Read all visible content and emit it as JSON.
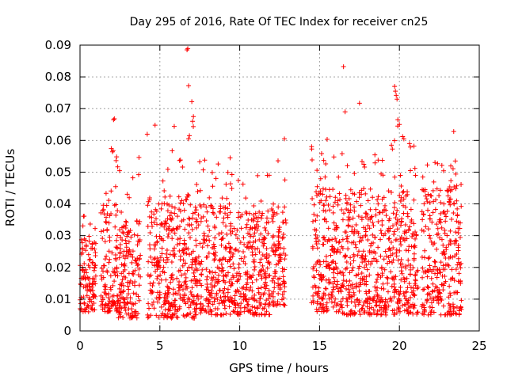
{
  "chart_data": {
    "type": "scatter",
    "title": "Day 295 of 2016, Rate Of TEC Index for receiver cn25",
    "xlabel": "GPS time / hours",
    "ylabel": "ROTI / TECUs",
    "xlim": [
      0,
      25
    ],
    "ylim": [
      0,
      0.09
    ],
    "xticks": [
      0,
      5,
      10,
      15,
      20,
      25
    ],
    "xtick_labels": [
      "0",
      "5",
      "10",
      "15",
      "20",
      "25"
    ],
    "yticks": [
      0,
      0.01,
      0.02,
      0.03,
      0.04,
      0.05,
      0.06,
      0.07,
      0.08,
      0.09
    ],
    "ytick_labels": [
      "0",
      "0.01",
      "0.02",
      "0.03",
      "0.04",
      "0.05",
      "0.06",
      "0.07",
      "0.08",
      "0.09"
    ],
    "grid": true,
    "marker": "+",
    "color": "#ff0000",
    "series": [
      {
        "name": "ROTI",
        "segments": [
          {
            "x_start": 0.0,
            "x_end": 1.0,
            "typical_low": 0.006,
            "typical_high": 0.03,
            "peak": 0.037
          },
          {
            "x_start": 1.3,
            "x_end": 2.4,
            "typical_low": 0.006,
            "typical_high": 0.04,
            "peak": 0.058
          },
          {
            "x_start": 2.4,
            "x_end": 3.8,
            "typical_low": 0.004,
            "typical_high": 0.035,
            "peak": 0.057
          },
          {
            "x_start": 4.2,
            "x_end": 7.2,
            "typical_low": 0.004,
            "typical_high": 0.043,
            "peak": 0.065
          },
          {
            "x_start": 7.2,
            "x_end": 9.4,
            "typical_low": 0.005,
            "typical_high": 0.04,
            "peak": 0.054
          },
          {
            "x_start": 9.4,
            "x_end": 11.9,
            "typical_low": 0.005,
            "typical_high": 0.038,
            "peak": 0.05
          },
          {
            "x_start": 12.0,
            "x_end": 12.9,
            "typical_low": 0.008,
            "typical_high": 0.04,
            "peak": 0.06
          },
          {
            "x_start": 14.5,
            "x_end": 16.4,
            "typical_low": 0.006,
            "typical_high": 0.045,
            "peak": 0.061
          },
          {
            "x_start": 16.4,
            "x_end": 19.0,
            "typical_low": 0.005,
            "typical_high": 0.045,
            "peak": 0.058
          },
          {
            "x_start": 19.0,
            "x_end": 21.2,
            "typical_low": 0.005,
            "typical_high": 0.045,
            "peak": 0.066
          },
          {
            "x_start": 21.4,
            "x_end": 23.9,
            "typical_low": 0.005,
            "typical_high": 0.045,
            "peak": 0.054
          }
        ],
        "outliers": [
          {
            "x": 2.1,
            "y": 0.0665
          },
          {
            "x": 2.15,
            "y": 0.0668
          },
          {
            "x": 4.7,
            "y": 0.0648
          },
          {
            "x": 6.7,
            "y": 0.0885
          },
          {
            "x": 6.75,
            "y": 0.0889
          },
          {
            "x": 6.8,
            "y": 0.0772
          },
          {
            "x": 7.0,
            "y": 0.0722
          },
          {
            "x": 7.1,
            "y": 0.0675
          },
          {
            "x": 7.05,
            "y": 0.066
          },
          {
            "x": 6.85,
            "y": 0.0615
          },
          {
            "x": 9.4,
            "y": 0.0545
          },
          {
            "x": 12.8,
            "y": 0.0605
          },
          {
            "x": 16.5,
            "y": 0.0832
          },
          {
            "x": 16.6,
            "y": 0.069
          },
          {
            "x": 17.5,
            "y": 0.0717
          },
          {
            "x": 19.7,
            "y": 0.077
          },
          {
            "x": 19.75,
            "y": 0.0755
          },
          {
            "x": 19.8,
            "y": 0.0742
          },
          {
            "x": 19.85,
            "y": 0.073
          },
          {
            "x": 19.9,
            "y": 0.0665
          },
          {
            "x": 20.0,
            "y": 0.065
          },
          {
            "x": 19.5,
            "y": 0.0585
          },
          {
            "x": 23.4,
            "y": 0.0628
          },
          {
            "x": 23.5,
            "y": 0.0535
          }
        ]
      }
    ]
  }
}
